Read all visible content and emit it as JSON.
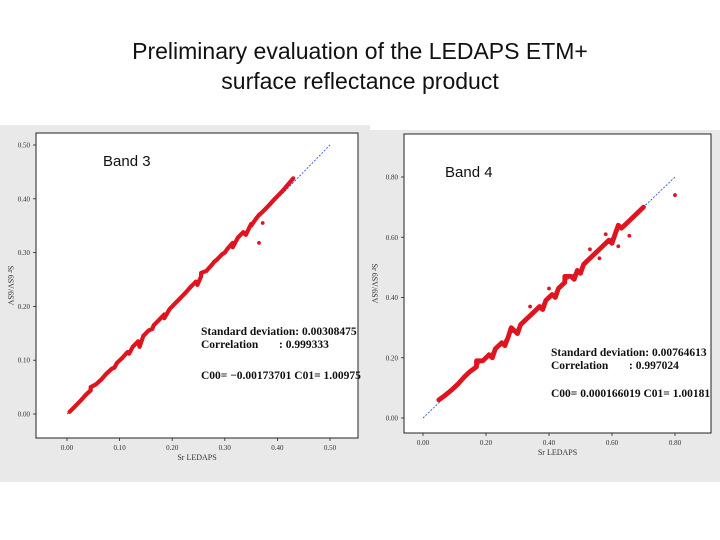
{
  "title": {
    "line1": "Preliminary evaluation of the LEDAPS ETM+",
    "line2": "surface reflectance product"
  },
  "chart_data": [
    {
      "type": "scatter",
      "panel_label": "Band 3",
      "xlabel": "Sr LEDAPS",
      "ylabel": "Sr 6SV/6SV",
      "xticks": [
        "0.00",
        "0.10",
        "0.20",
        "0.30",
        "0.40",
        "0.50"
      ],
      "yticks": [
        "0.00",
        "0.10",
        "0.20",
        "0.30",
        "0.40",
        "0.50"
      ],
      "xlim": [
        0,
        0.5
      ],
      "ylim": [
        0,
        0.5
      ],
      "stats": {
        "std_label": "Standard deviation",
        "std_value": ": 0.00308475",
        "corr_label": "Correlation",
        "corr_value": ": 0.999333",
        "coef_text": "C00= −0.00173701  C01= 1.00975"
      },
      "series_color": "#e0141e",
      "line_color": "#3355dd",
      "points": [
        [
          0.005,
          0.004
        ],
        [
          0.012,
          0.011
        ],
        [
          0.02,
          0.019
        ],
        [
          0.028,
          0.027
        ],
        [
          0.035,
          0.035
        ],
        [
          0.045,
          0.044
        ],
        [
          0.055,
          0.055
        ],
        [
          0.065,
          0.064
        ],
        [
          0.075,
          0.075
        ],
        [
          0.085,
          0.084
        ],
        [
          0.095,
          0.095
        ],
        [
          0.105,
          0.104
        ],
        [
          0.115,
          0.115
        ],
        [
          0.125,
          0.125
        ],
        [
          0.135,
          0.135
        ],
        [
          0.145,
          0.145
        ],
        [
          0.155,
          0.155
        ],
        [
          0.165,
          0.165
        ],
        [
          0.175,
          0.175
        ],
        [
          0.185,
          0.185
        ],
        [
          0.195,
          0.195
        ],
        [
          0.205,
          0.205
        ],
        [
          0.215,
          0.215
        ],
        [
          0.225,
          0.225
        ],
        [
          0.235,
          0.236
        ],
        [
          0.245,
          0.246
        ],
        [
          0.255,
          0.256
        ],
        [
          0.265,
          0.266
        ],
        [
          0.275,
          0.277
        ],
        [
          0.285,
          0.287
        ],
        [
          0.295,
          0.297
        ],
        [
          0.305,
          0.307
        ],
        [
          0.315,
          0.318
        ],
        [
          0.325,
          0.328
        ],
        [
          0.335,
          0.338
        ],
        [
          0.35,
          0.353
        ],
        [
          0.36,
          0.364
        ],
        [
          0.37,
          0.374
        ],
        [
          0.385,
          0.389
        ],
        [
          0.395,
          0.4
        ],
        [
          0.41,
          0.415
        ],
        [
          0.138,
          0.125
        ],
        [
          0.118,
          0.112
        ],
        [
          0.162,
          0.158
        ],
        [
          0.185,
          0.178
        ],
        [
          0.248,
          0.24
        ],
        [
          0.28,
          0.283
        ],
        [
          0.315,
          0.31
        ],
        [
          0.34,
          0.333
        ],
        [
          0.365,
          0.37
        ],
        [
          0.372,
          0.355
        ],
        [
          0.365,
          0.318
        ],
        [
          0.43,
          0.438
        ],
        [
          0.255,
          0.262
        ],
        [
          0.045,
          0.05
        ],
        [
          0.09,
          0.086
        ],
        [
          0.21,
          0.21
        ],
        [
          0.3,
          0.3
        ],
        [
          0.35,
          0.35
        ]
      ]
    },
    {
      "type": "scatter",
      "panel_label": "Band 4",
      "xlabel": "Sr LEDAPS",
      "ylabel": "Sr 6SV/6SV",
      "xticks": [
        "0.00",
        "0.20",
        "0.40",
        "0.60",
        "0.80"
      ],
      "yticks": [
        "0.00",
        "0.20",
        "0.40",
        "0.60",
        "0.80"
      ],
      "xlim": [
        0,
        0.8
      ],
      "ylim": [
        0,
        0.8
      ],
      "stats": {
        "std_label": "Standard deviation",
        "std_value": ": 0.00764613",
        "corr_label": "Correlation",
        "corr_value": ": 0.997024",
        "coef_text": "C00= 0.000166019  C01= 1.00181"
      },
      "series_color": "#e0141e",
      "line_color": "#3355dd",
      "points": [
        [
          0.05,
          0.06
        ],
        [
          0.07,
          0.075
        ],
        [
          0.09,
          0.092
        ],
        [
          0.11,
          0.112
        ],
        [
          0.13,
          0.135
        ],
        [
          0.15,
          0.155
        ],
        [
          0.17,
          0.17
        ],
        [
          0.19,
          0.19
        ],
        [
          0.21,
          0.21
        ],
        [
          0.23,
          0.23
        ],
        [
          0.25,
          0.25
        ],
        [
          0.27,
          0.268
        ],
        [
          0.29,
          0.29
        ],
        [
          0.31,
          0.31
        ],
        [
          0.33,
          0.33
        ],
        [
          0.35,
          0.35
        ],
        [
          0.37,
          0.37
        ],
        [
          0.39,
          0.39
        ],
        [
          0.41,
          0.41
        ],
        [
          0.43,
          0.43
        ],
        [
          0.45,
          0.45
        ],
        [
          0.47,
          0.47
        ],
        [
          0.49,
          0.49
        ],
        [
          0.51,
          0.51
        ],
        [
          0.53,
          0.53
        ],
        [
          0.55,
          0.55
        ],
        [
          0.57,
          0.57
        ],
        [
          0.59,
          0.59
        ],
        [
          0.61,
          0.61
        ],
        [
          0.63,
          0.63
        ],
        [
          0.65,
          0.65
        ],
        [
          0.22,
          0.2
        ],
        [
          0.26,
          0.24
        ],
        [
          0.3,
          0.28
        ],
        [
          0.34,
          0.37
        ],
        [
          0.38,
          0.36
        ],
        [
          0.42,
          0.4
        ],
        [
          0.45,
          0.47
        ],
        [
          0.5,
          0.48
        ],
        [
          0.53,
          0.56
        ],
        [
          0.56,
          0.53
        ],
        [
          0.6,
          0.58
        ],
        [
          0.62,
          0.64
        ],
        [
          0.655,
          0.605
        ],
        [
          0.62,
          0.57
        ],
        [
          0.58,
          0.61
        ],
        [
          0.7,
          0.7
        ],
        [
          0.8,
          0.74
        ],
        [
          0.17,
          0.19
        ],
        [
          0.28,
          0.3
        ],
        [
          0.4,
          0.43
        ],
        [
          0.48,
          0.46
        ]
      ]
    }
  ]
}
